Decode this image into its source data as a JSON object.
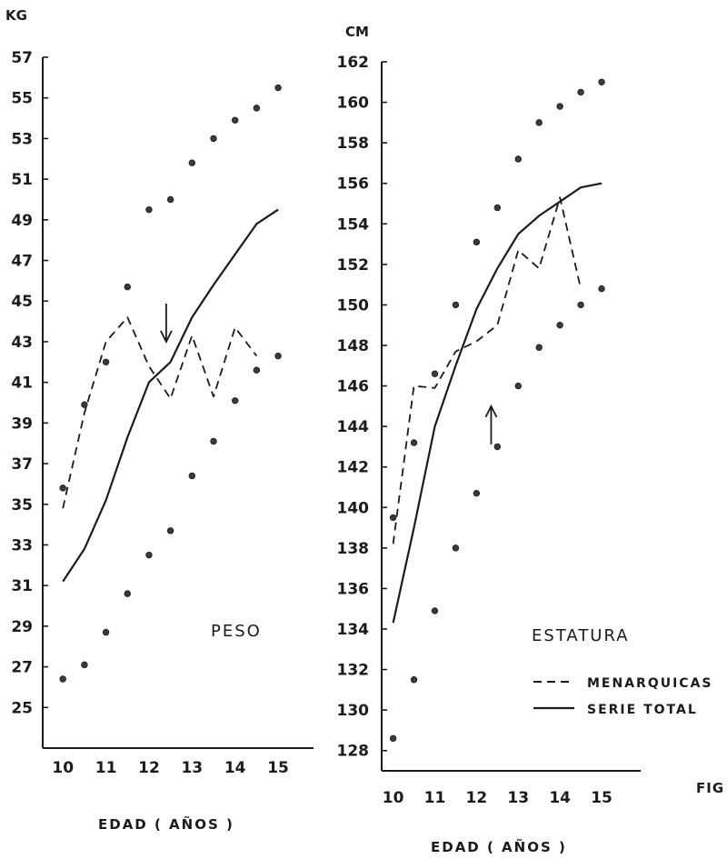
{
  "chart_data": [
    {
      "type": "line",
      "panel": "peso",
      "unit_label": "KG",
      "title": "PESO",
      "xlabel": "EDAD  ( AÑOS )",
      "xlim": [
        9.7,
        15.4
      ],
      "ylim": [
        23,
        57
      ],
      "x_ticks": [
        10,
        11,
        12,
        13,
        14,
        15
      ],
      "y_ticks": [
        25,
        27,
        29,
        31,
        33,
        35,
        37,
        39,
        41,
        43,
        45,
        47,
        49,
        51,
        53,
        55,
        57
      ],
      "series": [
        {
          "style": "solid",
          "x": [
            10,
            10.5,
            11,
            11.5,
            12,
            12.5,
            13,
            13.5,
            14,
            14.5,
            15
          ],
          "y": [
            31.2,
            32.8,
            35.2,
            38.3,
            41.0,
            42.0,
            44.2,
            45.8,
            47.3,
            48.8,
            49.5
          ]
        },
        {
          "style": "dashed",
          "x": [
            10,
            10.5,
            11,
            11.5,
            12,
            12.5,
            13,
            13.5,
            14,
            14.5
          ],
          "y": [
            34.8,
            39.5,
            43.0,
            44.2,
            41.8,
            40.2,
            43.3,
            40.3,
            43.7,
            42.3
          ]
        },
        {
          "style": "dotted",
          "x": [
            10,
            10.5,
            11,
            11.5,
            12,
            12.5,
            13,
            13.5,
            14,
            14.5,
            15
          ],
          "y": [
            35.8,
            39.9,
            42.0,
            45.7,
            49.5,
            50.0,
            51.8,
            53.0,
            53.9,
            54.5,
            55.5
          ]
        },
        {
          "style": "dotted",
          "x": [
            10,
            10.5,
            11,
            11.5,
            12,
            12.5,
            13,
            13.5,
            14,
            14.5,
            15
          ],
          "y": [
            26.4,
            27.1,
            28.7,
            30.6,
            32.5,
            33.7,
            36.4,
            38.1,
            40.1,
            41.6,
            42.3
          ]
        }
      ],
      "annotations": [
        {
          "type": "arrow-down",
          "x": 12.4,
          "y": 43.0
        }
      ]
    },
    {
      "type": "line",
      "panel": "estatura",
      "unit_label": "CM",
      "title": "ESTATURA",
      "xlabel": "EDAD ( AÑOS )",
      "xlim": [
        9.9,
        15.5
      ],
      "ylim": [
        127,
        162
      ],
      "x_ticks": [
        10,
        11,
        12,
        13,
        14,
        15
      ],
      "y_ticks": [
        128,
        130,
        132,
        134,
        136,
        138,
        140,
        142,
        144,
        146,
        148,
        150,
        152,
        154,
        156,
        158,
        160,
        162
      ],
      "series": [
        {
          "style": "solid",
          "x": [
            10,
            10.5,
            11,
            11.5,
            12,
            12.5,
            13,
            13.5,
            14,
            14.5,
            15
          ],
          "y": [
            134.3,
            139.0,
            144.0,
            147.0,
            149.8,
            151.8,
            153.5,
            154.4,
            155.1,
            155.8,
            156.0
          ]
        },
        {
          "style": "dashed",
          "x": [
            10,
            10.5,
            11,
            11.5,
            12,
            12.5,
            13,
            13.5,
            14,
            14.5
          ],
          "y": [
            138.2,
            146.0,
            145.9,
            147.7,
            148.2,
            149.0,
            152.7,
            151.8,
            155.3,
            150.8
          ]
        },
        {
          "style": "dotted",
          "x": [
            10,
            10.5,
            11,
            11.5,
            12,
            12.5,
            13,
            13.5,
            14,
            14.5,
            15
          ],
          "y": [
            139.5,
            143.2,
            146.6,
            150.0,
            153.1,
            154.8,
            157.2,
            159.0,
            159.8,
            160.5,
            161.0
          ]
        },
        {
          "style": "dotted",
          "x": [
            10,
            10.5,
            11,
            11.5,
            12,
            12.5,
            13,
            13.5,
            14,
            14.5,
            15
          ],
          "y": [
            128.6,
            131.5,
            134.9,
            138.0,
            140.7,
            143.0,
            146.0,
            147.9,
            149.0,
            150.0,
            150.8
          ]
        }
      ],
      "annotations": [
        {
          "type": "arrow-up",
          "x": 12.35,
          "y": 145.0
        }
      ],
      "legend": {
        "placement": "bottom-right",
        "entries": [
          {
            "style": "dashed",
            "label": "MENARQUICAS"
          },
          {
            "style": "solid",
            "label": "SERIE TOTAL"
          }
        ]
      }
    }
  ],
  "figure_label": "FIG"
}
